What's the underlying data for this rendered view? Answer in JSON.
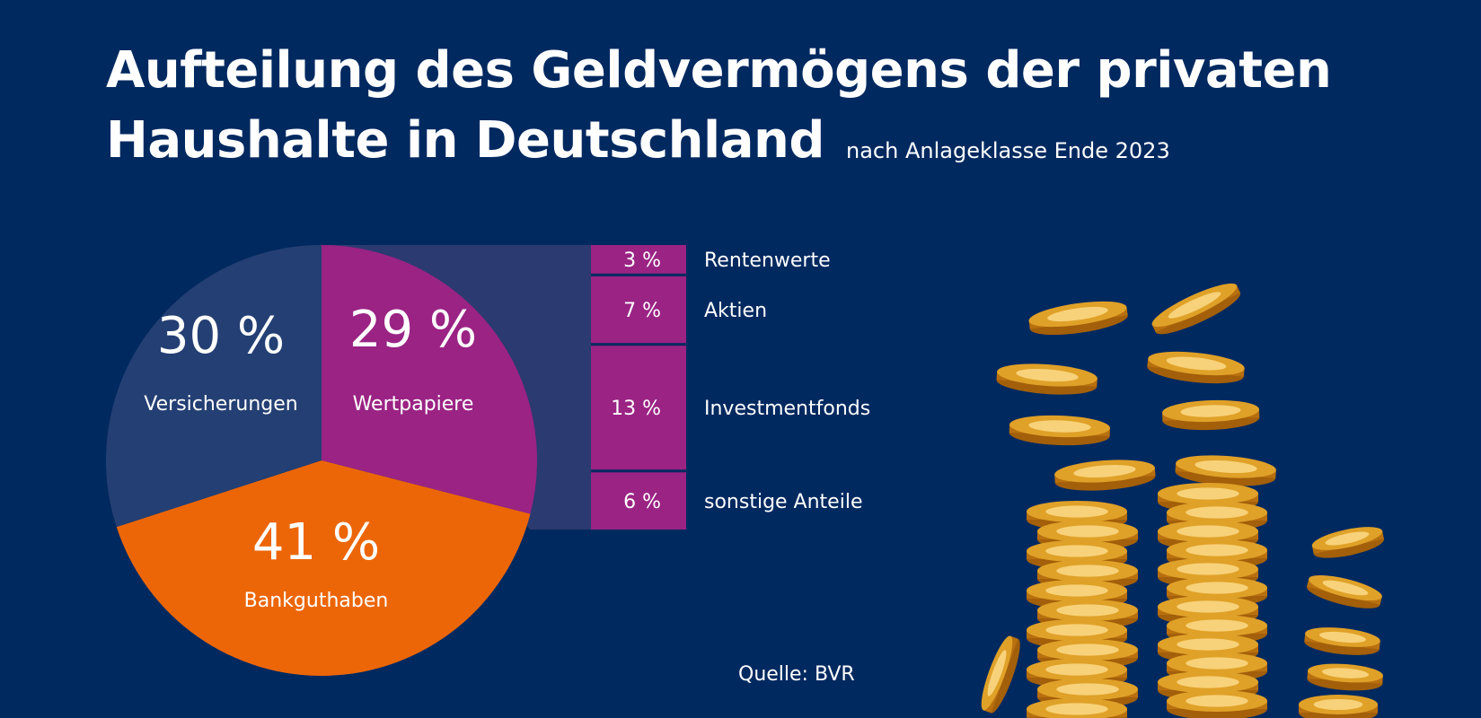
{
  "title_line1": "Aufteilung des Geldvermögens der privaten",
  "title_line2": "Haushalte in Deutschland",
  "subtitle": "nach Anlageklasse Ende 2023",
  "source": "Quelle: BVR",
  "colors": {
    "background": "#002960",
    "versicherungen": "#243f73",
    "wertpapiere": "#9a2384",
    "bankguthaben": "#ec6608",
    "connector": "#2b3a70",
    "text": "#ffffff",
    "coin": "#e0a128"
  },
  "illustration": "gold-coin-stacks",
  "chart_data": {
    "type": "pie",
    "slices": [
      {
        "label": "Wertpapiere",
        "value": 29,
        "display": "29 %",
        "color": "#9a2384"
      },
      {
        "label": "Bankguthaben",
        "value": 41,
        "display": "41 %",
        "color": "#ec6608"
      },
      {
        "label": "Versicherungen",
        "value": 30,
        "display": "30 %",
        "color": "#243f73"
      }
    ],
    "breakdown": {
      "parent": "Wertpapiere",
      "type": "stacked-bar",
      "segments": [
        {
          "label": "Rentenwerte",
          "value": 3,
          "display": "3 %"
        },
        {
          "label": "Aktien",
          "value": 7,
          "display": "7 %"
        },
        {
          "label": "Investmentfonds",
          "value": 13,
          "display": "13 %"
        },
        {
          "label": "sonstige Anteile",
          "value": 6,
          "display": "6 %"
        }
      ]
    }
  }
}
